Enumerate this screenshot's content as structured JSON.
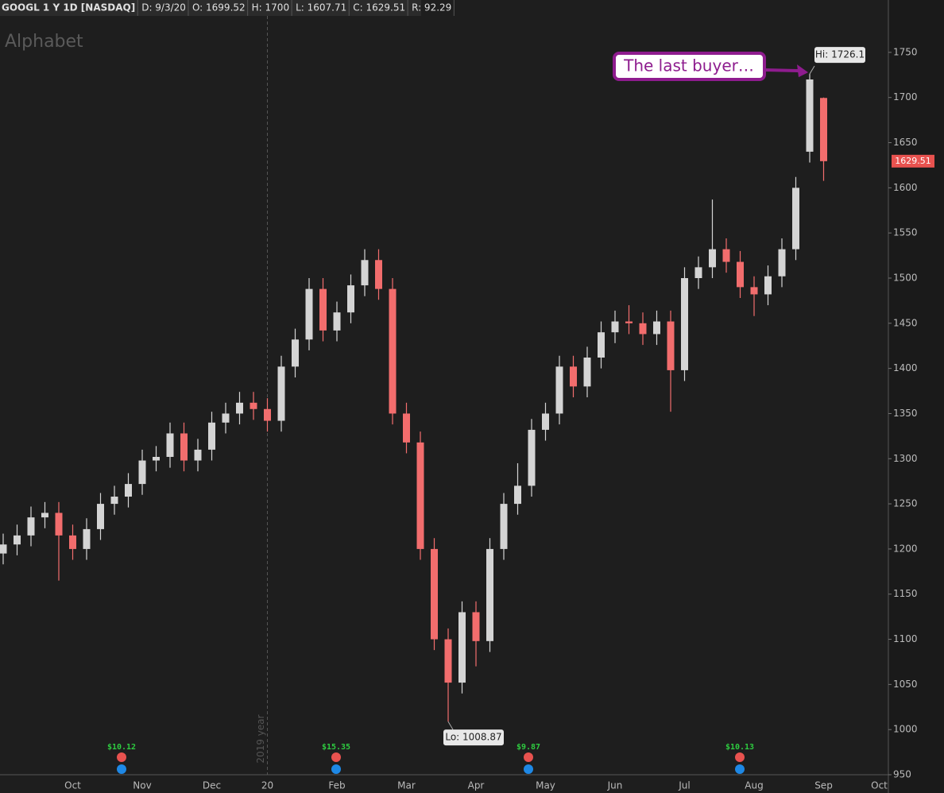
{
  "header": {
    "symbol": "GOOGL 1 Y 1D [NASDAQ]",
    "date": "D: 9/3/20",
    "open": "O: 1699.52",
    "high": "H: 1700",
    "low": "L: 1607.71",
    "close": "C: 1629.51",
    "range": "R: 92.29"
  },
  "chart_data": {
    "type": "candlestick",
    "watermark": "Alphabet",
    "categories": [
      null,
      null,
      null,
      null,
      null,
      "Oct",
      null,
      null,
      null,
      null,
      "Nov",
      null,
      null,
      null,
      null,
      "Dec",
      null,
      null,
      null,
      "20",
      null,
      null,
      null,
      null,
      "Feb",
      null,
      null,
      null,
      null,
      "Mar",
      null,
      null,
      null,
      null,
      "Apr",
      null,
      null,
      null,
      null,
      "May",
      null,
      null,
      null,
      null,
      "Jun",
      null,
      null,
      null,
      null,
      "Jul",
      null,
      null,
      null,
      null,
      "Aug",
      null,
      null,
      null,
      null,
      "Sep",
      null,
      null,
      null,
      "Oct"
    ],
    "open": [
      1195,
      1205,
      1215,
      1235,
      1240,
      1215,
      1200,
      1222,
      1250,
      1258,
      1272,
      1298,
      1302,
      1328,
      1298,
      1310,
      1340,
      1350,
      1362,
      1355,
      1342,
      1402,
      1432,
      1488,
      1442,
      1462,
      1492,
      1520,
      1488,
      1350,
      1318,
      1200,
      1100,
      1052,
      1130,
      1098,
      1200,
      1250,
      1270,
      1332,
      1350,
      1402,
      1380,
      1412,
      1440,
      1452,
      1450,
      1438,
      1452,
      1398,
      1500,
      1512,
      1532,
      1518,
      1490,
      1482,
      1502,
      1532,
      1640,
      1699.52,
      null,
      null,
      null,
      null
    ],
    "high": [
      1217,
      1227,
      1247,
      1252,
      1252,
      1227,
      1234,
      1262,
      1270,
      1284,
      1310,
      1314,
      1340,
      1340,
      1322,
      1352,
      1362,
      1374,
      1374,
      1367,
      1414,
      1444,
      1500,
      1500,
      1474,
      1504,
      1532,
      1532,
      1500,
      1362,
      1330,
      1212,
      1112,
      1142,
      1142,
      1212,
      1262,
      1295,
      1344,
      1362,
      1414,
      1414,
      1424,
      1452,
      1464,
      1470,
      1462,
      1464,
      1464,
      1512,
      1524,
      1587,
      1544,
      1530,
      1502,
      1514,
      1544,
      1612,
      1726.1,
      1700,
      null,
      null,
      null,
      null
    ],
    "low": [
      1183,
      1193,
      1203,
      1223,
      1165,
      1188,
      1188,
      1210,
      1238,
      1246,
      1260,
      1286,
      1290,
      1286,
      1286,
      1298,
      1328,
      1338,
      1343,
      1330,
      1330,
      1390,
      1420,
      1430,
      1430,
      1450,
      1480,
      1476,
      1338,
      1306,
      1188,
      1088,
      1008.87,
      1040,
      1070,
      1086,
      1188,
      1238,
      1258,
      1320,
      1338,
      1368,
      1368,
      1400,
      1428,
      1438,
      1426,
      1426,
      1352,
      1386,
      1488,
      1500,
      1506,
      1478,
      1458,
      1470,
      1490,
      1520,
      1628,
      1607.71,
      null,
      null,
      null,
      null
    ],
    "close": [
      1205,
      1215,
      1235,
      1240,
      1215,
      1200,
      1222,
      1250,
      1258,
      1272,
      1298,
      1302,
      1328,
      1298,
      1310,
      1340,
      1350,
      1362,
      1355,
      1342,
      1402,
      1432,
      1488,
      1442,
      1462,
      1492,
      1520,
      1488,
      1350,
      1318,
      1200,
      1100,
      1052,
      1130,
      1098,
      1200,
      1250,
      1270,
      1332,
      1350,
      1402,
      1380,
      1412,
      1440,
      1452,
      1450,
      1438,
      1452,
      1398,
      1500,
      1512,
      1532,
      1518,
      1490,
      1482,
      1502,
      1532,
      1600,
      1720,
      1629.51,
      null,
      null,
      null,
      null
    ],
    "up_color": "#d4d4d4",
    "down_color": "#f26d6d",
    "ylim": [
      950,
      1808
    ],
    "yticks": [
      950,
      1000,
      1050,
      1100,
      1150,
      1200,
      1250,
      1300,
      1350,
      1400,
      1450,
      1500,
      1550,
      1600,
      1650,
      1700,
      1750
    ],
    "grid": false,
    "hi_label": "Hi: 1726.1",
    "lo_label": "Lo: 1008.87",
    "last_label": "1629.51",
    "annotation": "The last buyer…",
    "year_label": "2019 year",
    "events": [
      "$10.12",
      "$15.35",
      "$9.87",
      "$10.13"
    ]
  }
}
